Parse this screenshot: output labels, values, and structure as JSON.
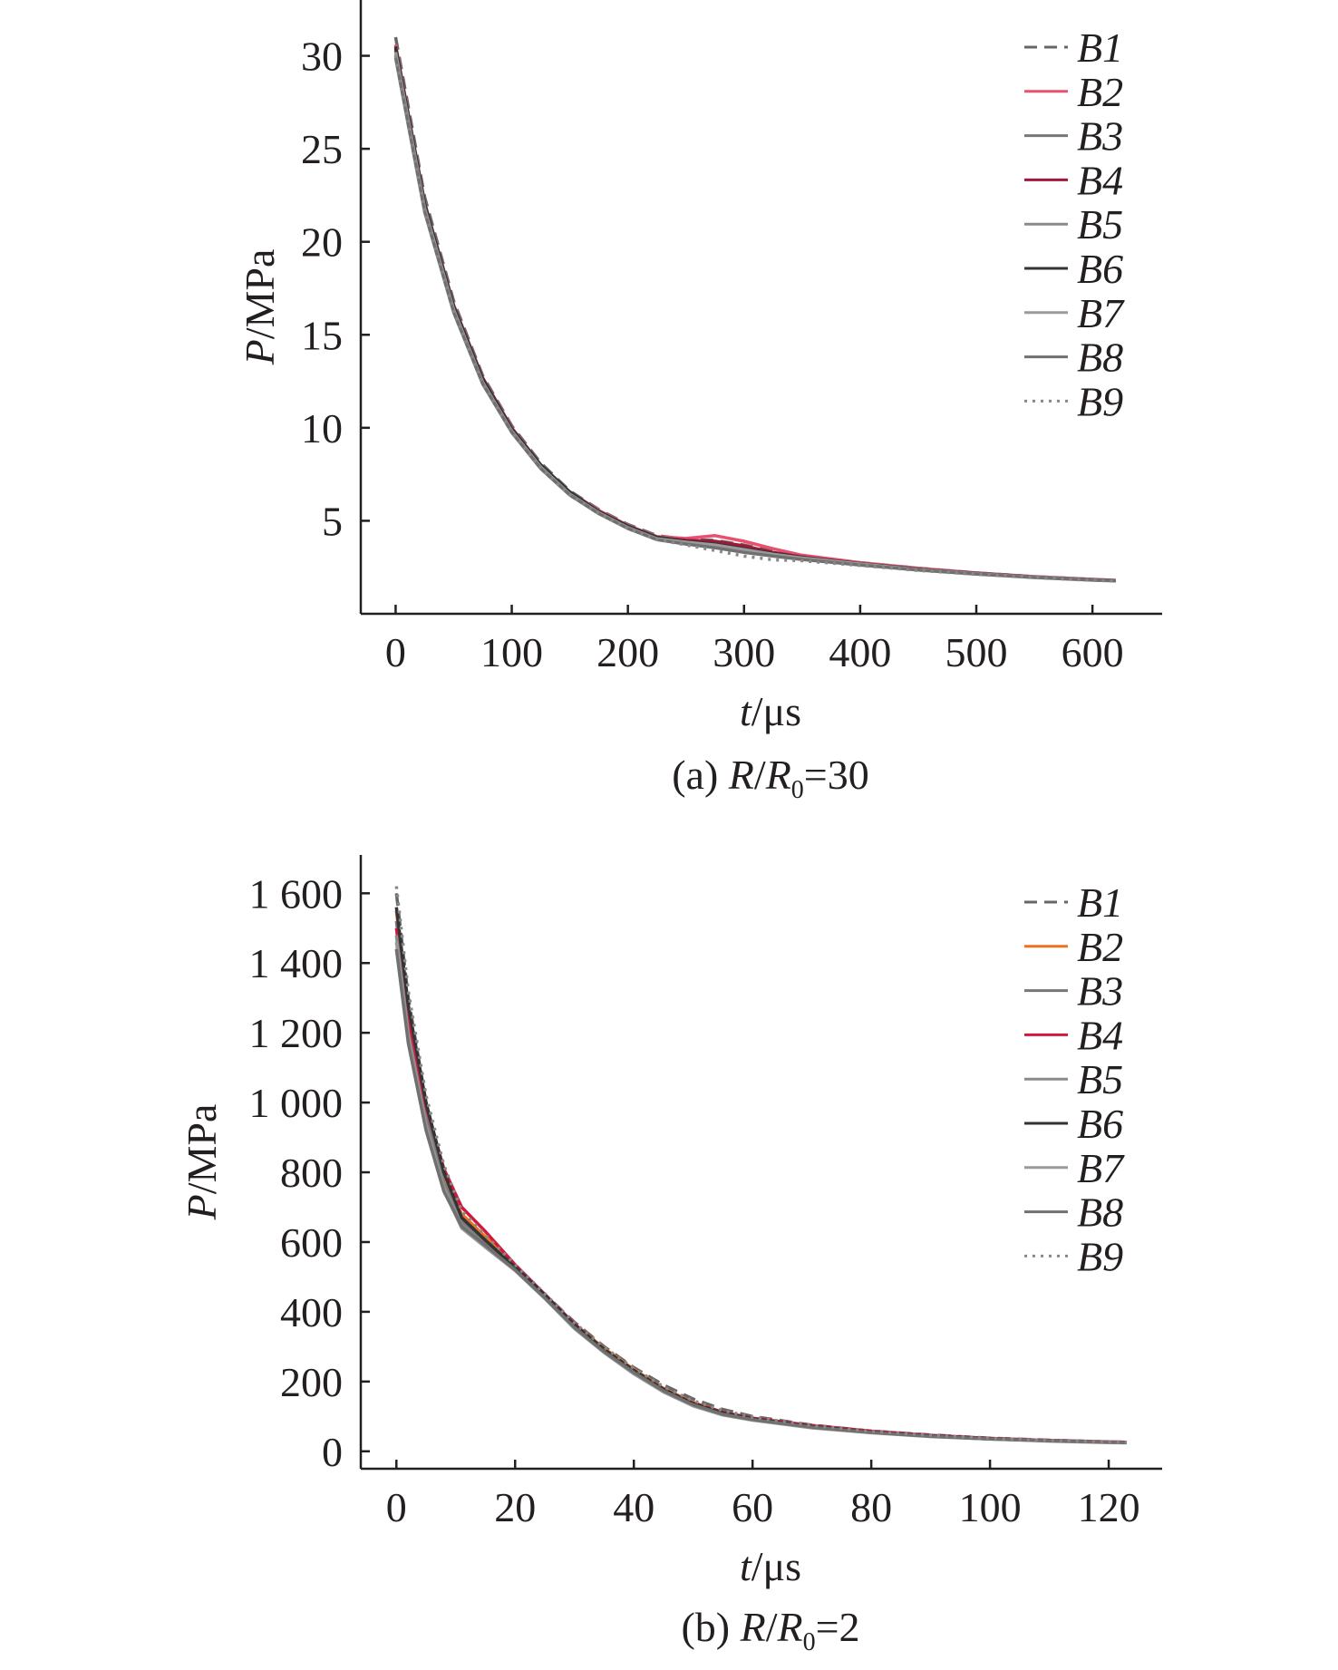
{
  "chart_data": [
    {
      "type": "line",
      "caption": "(a) R/R0=30",
      "caption_parts": {
        "prefix": "(a) ",
        "r": "R",
        "slash": "/",
        "r0": "R",
        "sub": "0",
        "eq": "=30"
      },
      "xlabel": {
        "italic": "t",
        "unit": "/μs"
      },
      "ylabel": {
        "italic": "P",
        "unit": "/MPa"
      },
      "xlim": [
        -30,
        660
      ],
      "ylim": [
        0,
        33
      ],
      "xticks": [
        0,
        100,
        200,
        300,
        400,
        500,
        600
      ],
      "xtick_labels": [
        "0",
        "100",
        "200",
        "300",
        "400",
        "500",
        "600"
      ],
      "yticks": [
        5,
        10,
        15,
        20,
        25,
        30
      ],
      "ytick_labels": [
        "5",
        "10",
        "15",
        "20",
        "25",
        "30"
      ],
      "grid": false,
      "legend_position": "top-right",
      "series": [
        {
          "name": "B1",
          "color": "#666666",
          "dash": "dashed",
          "x": [
            0,
            25,
            50,
            75,
            100,
            125,
            150,
            175,
            200,
            225,
            250,
            275,
            300,
            325,
            350,
            400,
            450,
            500,
            550,
            600,
            620
          ],
          "y": [
            31.0,
            22.4,
            16.8,
            12.8,
            10.1,
            8.1,
            6.6,
            5.6,
            4.8,
            4.2,
            4.0,
            3.95,
            3.7,
            3.35,
            3.1,
            2.75,
            2.45,
            2.2,
            2.0,
            1.85,
            1.8
          ]
        },
        {
          "name": "B2",
          "color": "#e8506e",
          "dash": "solid",
          "x": [
            0,
            25,
            50,
            75,
            100,
            125,
            150,
            175,
            200,
            225,
            250,
            275,
            300,
            325,
            350,
            400,
            450,
            500,
            550,
            600,
            620
          ],
          "y": [
            30.6,
            22.1,
            16.6,
            12.7,
            10.0,
            8.0,
            6.55,
            5.55,
            4.75,
            4.15,
            4.05,
            4.2,
            3.9,
            3.5,
            3.15,
            2.75,
            2.45,
            2.2,
            2.0,
            1.85,
            1.8
          ]
        },
        {
          "name": "B3",
          "color": "#777777",
          "dash": "solid",
          "x": [
            0,
            25,
            50,
            75,
            100,
            125,
            150,
            175,
            200,
            225,
            250,
            275,
            300,
            325,
            350,
            400,
            450,
            500,
            550,
            600,
            620
          ],
          "y": [
            30.3,
            21.9,
            16.4,
            12.5,
            9.85,
            7.9,
            6.45,
            5.45,
            4.65,
            4.05,
            3.9,
            3.85,
            3.6,
            3.3,
            3.05,
            2.7,
            2.4,
            2.18,
            1.98,
            1.83,
            1.79
          ]
        },
        {
          "name": "B4",
          "color": "#a0183a",
          "dash": "solid",
          "x": [
            0,
            25,
            50,
            75,
            100,
            125,
            150,
            175,
            200,
            225,
            250,
            275,
            300,
            325,
            350,
            400,
            450,
            500,
            550,
            600,
            620
          ],
          "y": [
            30.4,
            22.0,
            16.5,
            12.6,
            9.95,
            8.0,
            6.5,
            5.5,
            4.7,
            4.1,
            3.95,
            3.9,
            3.65,
            3.3,
            3.05,
            2.7,
            2.4,
            2.18,
            1.98,
            1.83,
            1.79
          ]
        },
        {
          "name": "B5",
          "color": "#8a8a8a",
          "dash": "solid",
          "x": [
            0,
            25,
            50,
            75,
            100,
            125,
            150,
            175,
            200,
            225,
            250,
            275,
            300,
            325,
            350,
            400,
            450,
            500,
            550,
            600,
            620
          ],
          "y": [
            30.1,
            21.7,
            16.3,
            12.4,
            9.8,
            7.85,
            6.4,
            5.4,
            4.6,
            4.0,
            3.8,
            3.6,
            3.35,
            3.15,
            2.95,
            2.65,
            2.37,
            2.15,
            1.96,
            1.82,
            1.78
          ]
        },
        {
          "name": "B6",
          "color": "#333333",
          "dash": "solid",
          "x": [
            0,
            25,
            50,
            75,
            100,
            125,
            150,
            175,
            200,
            225,
            250,
            275,
            300,
            325,
            350,
            400,
            450,
            500,
            550,
            600,
            620
          ],
          "y": [
            30.5,
            22.05,
            16.55,
            12.65,
            9.95,
            8.0,
            6.55,
            5.5,
            4.72,
            4.12,
            3.9,
            3.75,
            3.5,
            3.25,
            3.02,
            2.7,
            2.4,
            2.17,
            1.97,
            1.83,
            1.79
          ]
        },
        {
          "name": "B7",
          "color": "#9a9a9a",
          "dash": "solid",
          "x": [
            0,
            25,
            50,
            75,
            100,
            125,
            150,
            175,
            200,
            225,
            250,
            275,
            300,
            325,
            350,
            400,
            450,
            500,
            550,
            600,
            620
          ],
          "y": [
            30.2,
            21.8,
            16.35,
            12.45,
            9.82,
            7.88,
            6.43,
            5.43,
            4.63,
            4.03,
            3.85,
            3.7,
            3.45,
            3.2,
            3.0,
            2.68,
            2.38,
            2.16,
            1.97,
            1.82,
            1.78
          ]
        },
        {
          "name": "B8",
          "color": "#707070",
          "dash": "solid",
          "x": [
            0,
            25,
            50,
            75,
            100,
            125,
            150,
            175,
            200,
            225,
            250,
            275,
            300,
            325,
            350,
            400,
            450,
            500,
            550,
            600,
            620
          ],
          "y": [
            29.9,
            21.6,
            16.2,
            12.35,
            9.75,
            7.8,
            6.38,
            5.38,
            4.58,
            3.98,
            3.75,
            3.55,
            3.3,
            3.1,
            2.92,
            2.62,
            2.35,
            2.13,
            1.95,
            1.81,
            1.77
          ]
        },
        {
          "name": "B9",
          "color": "#888888",
          "dash": "dotted",
          "x": [
            0,
            25,
            50,
            75,
            100,
            125,
            150,
            175,
            200,
            225,
            250,
            275,
            300,
            325,
            350,
            400,
            450,
            500,
            550,
            600,
            620
          ],
          "y": [
            30.0,
            21.65,
            16.25,
            12.4,
            9.78,
            7.83,
            6.4,
            5.4,
            4.6,
            4.0,
            3.7,
            3.4,
            3.1,
            2.9,
            2.85,
            2.6,
            2.33,
            2.12,
            1.94,
            1.8,
            1.76
          ]
        }
      ]
    },
    {
      "type": "line",
      "caption": "(b) R/R0=2",
      "caption_parts": {
        "prefix": "(b) ",
        "r": "R",
        "slash": "/",
        "r0": "R",
        "sub": "0",
        "eq": "=2"
      },
      "xlabel": {
        "italic": "t",
        "unit": "/μs"
      },
      "ylabel": {
        "italic": "P",
        "unit": "/MPa"
      },
      "xlim": [
        -6,
        129
      ],
      "ylim": [
        -50,
        1710
      ],
      "xticks": [
        0,
        20,
        40,
        60,
        80,
        100,
        120
      ],
      "xtick_labels": [
        "0",
        "20",
        "40",
        "60",
        "80",
        "100",
        "120"
      ],
      "yticks": [
        0,
        200,
        400,
        600,
        800,
        1000,
        1200,
        1400,
        1600
      ],
      "ytick_labels": [
        "0",
        "200",
        "400",
        "600",
        "800",
        "1 000",
        "1 200",
        "1 400",
        "1 600"
      ],
      "grid": false,
      "legend_position": "top-right",
      "series": [
        {
          "name": "B1",
          "color": "#666666",
          "dash": "dashed",
          "x": [
            0,
            2,
            5,
            8,
            11,
            15,
            20,
            25,
            30,
            35,
            40,
            45,
            50,
            55,
            60,
            70,
            80,
            90,
            100,
            110,
            120,
            123
          ],
          "y": [
            1600,
            1300,
            1000,
            800,
            660,
            600,
            530,
            450,
            370,
            300,
            240,
            190,
            150,
            120,
            100,
            75,
            58,
            47,
            38,
            32,
            27,
            26
          ]
        },
        {
          "name": "B2",
          "color": "#f07020",
          "dash": "solid",
          "x": [
            0,
            2,
            5,
            8,
            11,
            15,
            20,
            25,
            30,
            35,
            40,
            45,
            50,
            55,
            60,
            70,
            80,
            90,
            100,
            110,
            120,
            123
          ],
          "y": [
            1550,
            1260,
            980,
            790,
            680,
            615,
            530,
            450,
            365,
            295,
            235,
            180,
            140,
            112,
            95,
            72,
            56,
            45,
            37,
            31,
            27,
            26
          ]
        },
        {
          "name": "B3",
          "color": "#777777",
          "dash": "solid",
          "x": [
            0,
            2,
            5,
            8,
            11,
            15,
            20,
            25,
            30,
            35,
            40,
            45,
            50,
            55,
            60,
            70,
            80,
            90,
            100,
            110,
            120,
            123
          ],
          "y": [
            1520,
            1240,
            960,
            770,
            660,
            600,
            525,
            445,
            360,
            290,
            230,
            175,
            135,
            108,
            92,
            70,
            55,
            44,
            36,
            30,
            26,
            25
          ]
        },
        {
          "name": "B4",
          "color": "#d0183e",
          "dash": "solid",
          "x": [
            0,
            2,
            5,
            8,
            11,
            15,
            20,
            25,
            30,
            35,
            40,
            45,
            50,
            55,
            60,
            70,
            80,
            90,
            100,
            110,
            120,
            123
          ],
          "y": [
            1500,
            1230,
            990,
            810,
            700,
            630,
            535,
            450,
            365,
            292,
            232,
            178,
            138,
            112,
            95,
            74,
            58,
            46,
            37,
            31,
            27,
            26
          ]
        },
        {
          "name": "B5",
          "color": "#8a8a8a",
          "dash": "solid",
          "x": [
            0,
            2,
            5,
            8,
            11,
            15,
            20,
            25,
            30,
            35,
            40,
            45,
            50,
            55,
            60,
            70,
            80,
            90,
            100,
            110,
            120,
            123
          ],
          "y": [
            1480,
            1200,
            940,
            760,
            650,
            590,
            520,
            440,
            355,
            285,
            225,
            172,
            132,
            105,
            90,
            68,
            54,
            43,
            35,
            30,
            26,
            25
          ]
        },
        {
          "name": "B6",
          "color": "#333333",
          "dash": "solid",
          "x": [
            0,
            2,
            5,
            8,
            11,
            15,
            20,
            25,
            30,
            35,
            40,
            45,
            50,
            55,
            60,
            70,
            80,
            90,
            100,
            110,
            120,
            123
          ],
          "y": [
            1560,
            1280,
            1000,
            800,
            670,
            605,
            528,
            448,
            362,
            292,
            232,
            178,
            137,
            110,
            93,
            71,
            55,
            44,
            36,
            30,
            26,
            25
          ]
        },
        {
          "name": "B7",
          "color": "#9a9a9a",
          "dash": "solid",
          "x": [
            0,
            2,
            5,
            8,
            11,
            15,
            20,
            25,
            30,
            35,
            40,
            45,
            50,
            55,
            60,
            70,
            80,
            90,
            100,
            110,
            120,
            123
          ],
          "y": [
            1460,
            1180,
            930,
            750,
            640,
            585,
            518,
            438,
            352,
            283,
            222,
            170,
            130,
            104,
            89,
            67,
            53,
            42,
            35,
            29,
            25,
            24
          ]
        },
        {
          "name": "B8",
          "color": "#707070",
          "dash": "solid",
          "x": [
            0,
            2,
            5,
            8,
            11,
            15,
            20,
            25,
            30,
            35,
            40,
            45,
            50,
            55,
            60,
            70,
            80,
            90,
            100,
            110,
            120,
            123
          ],
          "y": [
            1440,
            1170,
            920,
            745,
            645,
            590,
            520,
            440,
            355,
            285,
            226,
            173,
            133,
            106,
            91,
            69,
            54,
            43,
            35,
            30,
            26,
            25
          ]
        },
        {
          "name": "B9",
          "color": "#888888",
          "dash": "dotted",
          "x": [
            0,
            2,
            5,
            8,
            11,
            15,
            20,
            25,
            30,
            35,
            40,
            45,
            50,
            55,
            60,
            70,
            80,
            90,
            100,
            110,
            120,
            123
          ],
          "y": [
            1620,
            1320,
            1020,
            820,
            690,
            620,
            535,
            452,
            368,
            298,
            238,
            185,
            145,
            117,
            98,
            74,
            57,
            46,
            37,
            31,
            27,
            26
          ]
        }
      ]
    }
  ]
}
